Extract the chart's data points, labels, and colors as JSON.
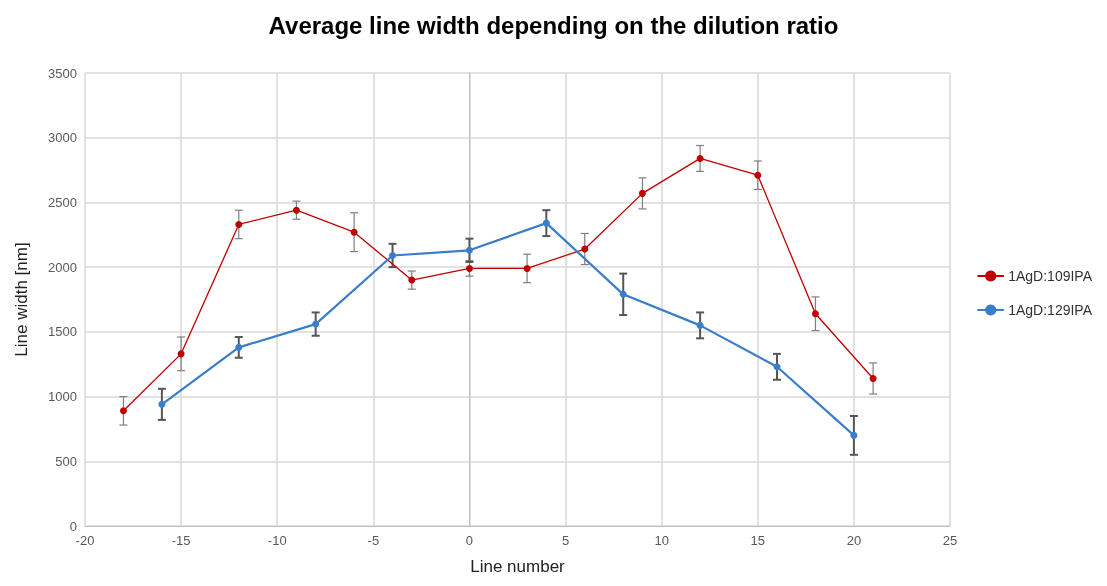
{
  "chart_data": {
    "type": "line",
    "title": "Average line width depending on the dilution ratio",
    "xlabel": "Line number",
    "ylabel": "Line width [nm]",
    "series": [
      {
        "name": "1AgD:109IPA",
        "color": "#c00000",
        "x": [
          -18,
          -15,
          -12,
          -9,
          -6,
          -3,
          0,
          3,
          6,
          9,
          12,
          15,
          18,
          21
        ],
        "values": [
          890,
          1330,
          2330,
          2440,
          2270,
          1900,
          1990,
          1990,
          2140,
          2570,
          2840,
          2710,
          1640,
          1140
        ],
        "errors": [
          110,
          130,
          110,
          70,
          150,
          70,
          60,
          110,
          120,
          120,
          100,
          110,
          130,
          120
        ]
      },
      {
        "name": "1AgD:129IPA",
        "color": "#3a7dc9",
        "x": [
          -16,
          -12,
          -8,
          -4,
          0,
          4,
          8,
          12,
          16,
          20
        ],
        "values": [
          940,
          1380,
          1560,
          2090,
          2130,
          2340,
          1790,
          1550,
          1230,
          700
        ],
        "errors": [
          120,
          80,
          90,
          90,
          90,
          100,
          160,
          100,
          100,
          150
        ]
      }
    ],
    "xlim": [
      -20,
      25
    ],
    "xticks": [
      -20,
      -15,
      -10,
      -5,
      0,
      5,
      10,
      15,
      20,
      25
    ],
    "ylim": [
      0,
      3500
    ],
    "yticks": [
      0,
      500,
      1000,
      1500,
      2000,
      2500,
      3000,
      3500
    ],
    "grid": true,
    "legend": "right",
    "marker": "circle",
    "line_style": "solid"
  }
}
